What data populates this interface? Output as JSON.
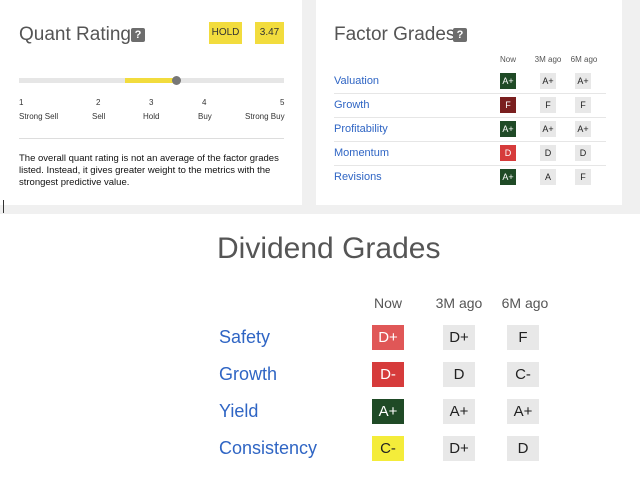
{
  "quant": {
    "title": "Quant Rating",
    "help": "?",
    "rating_label": "HOLD",
    "score": "3.47",
    "score_value": 3.47,
    "scale": [
      {
        "num": "1",
        "label": "Strong Sell"
      },
      {
        "num": "2",
        "label": "Sell"
      },
      {
        "num": "3",
        "label": "Hold"
      },
      {
        "num": "4",
        "label": "Buy"
      },
      {
        "num": "5",
        "label": "Strong Buy"
      }
    ],
    "description": "The overall quant rating is not an average of the factor grades listed. Instead, it gives greater weight to the metrics with the strongest predictive value."
  },
  "factor": {
    "title": "Factor Grades",
    "help": "?",
    "columns": [
      "Now",
      "3M ago",
      "6M ago"
    ],
    "rows": [
      {
        "label": "Valuation",
        "grades": [
          "A+",
          "A+",
          "A+"
        ]
      },
      {
        "label": "Growth",
        "grades": [
          "F",
          "F",
          "F"
        ]
      },
      {
        "label": "Profitability",
        "grades": [
          "A+",
          "A+",
          "A+"
        ]
      },
      {
        "label": "Momentum",
        "grades": [
          "D",
          "D",
          "D"
        ]
      },
      {
        "label": "Revisions",
        "grades": [
          "A+",
          "A",
          "F"
        ]
      }
    ]
  },
  "dividend": {
    "title": "Dividend Grades",
    "columns": [
      "Now",
      "3M ago",
      "6M ago"
    ],
    "rows": [
      {
        "label": "Safety",
        "grades": [
          "D+",
          "D+",
          "F"
        ]
      },
      {
        "label": "Growth",
        "grades": [
          "D-",
          "D",
          "C-"
        ]
      },
      {
        "label": "Yield",
        "grades": [
          "A+",
          "A+",
          "A+"
        ]
      },
      {
        "label": "Consistency",
        "grades": [
          "C-",
          "D+",
          "D"
        ]
      }
    ]
  },
  "colors": {
    "hold_yellow": "#f2dc3d",
    "link_blue": "#2f65c4",
    "a_green": "#1f4a26",
    "f_darkred": "#7a1f1f",
    "d_red": "#d63b3b",
    "d_light_red": "#e05757",
    "c_yellow": "#f4ec3a",
    "neutral": "#e8e8e8"
  }
}
